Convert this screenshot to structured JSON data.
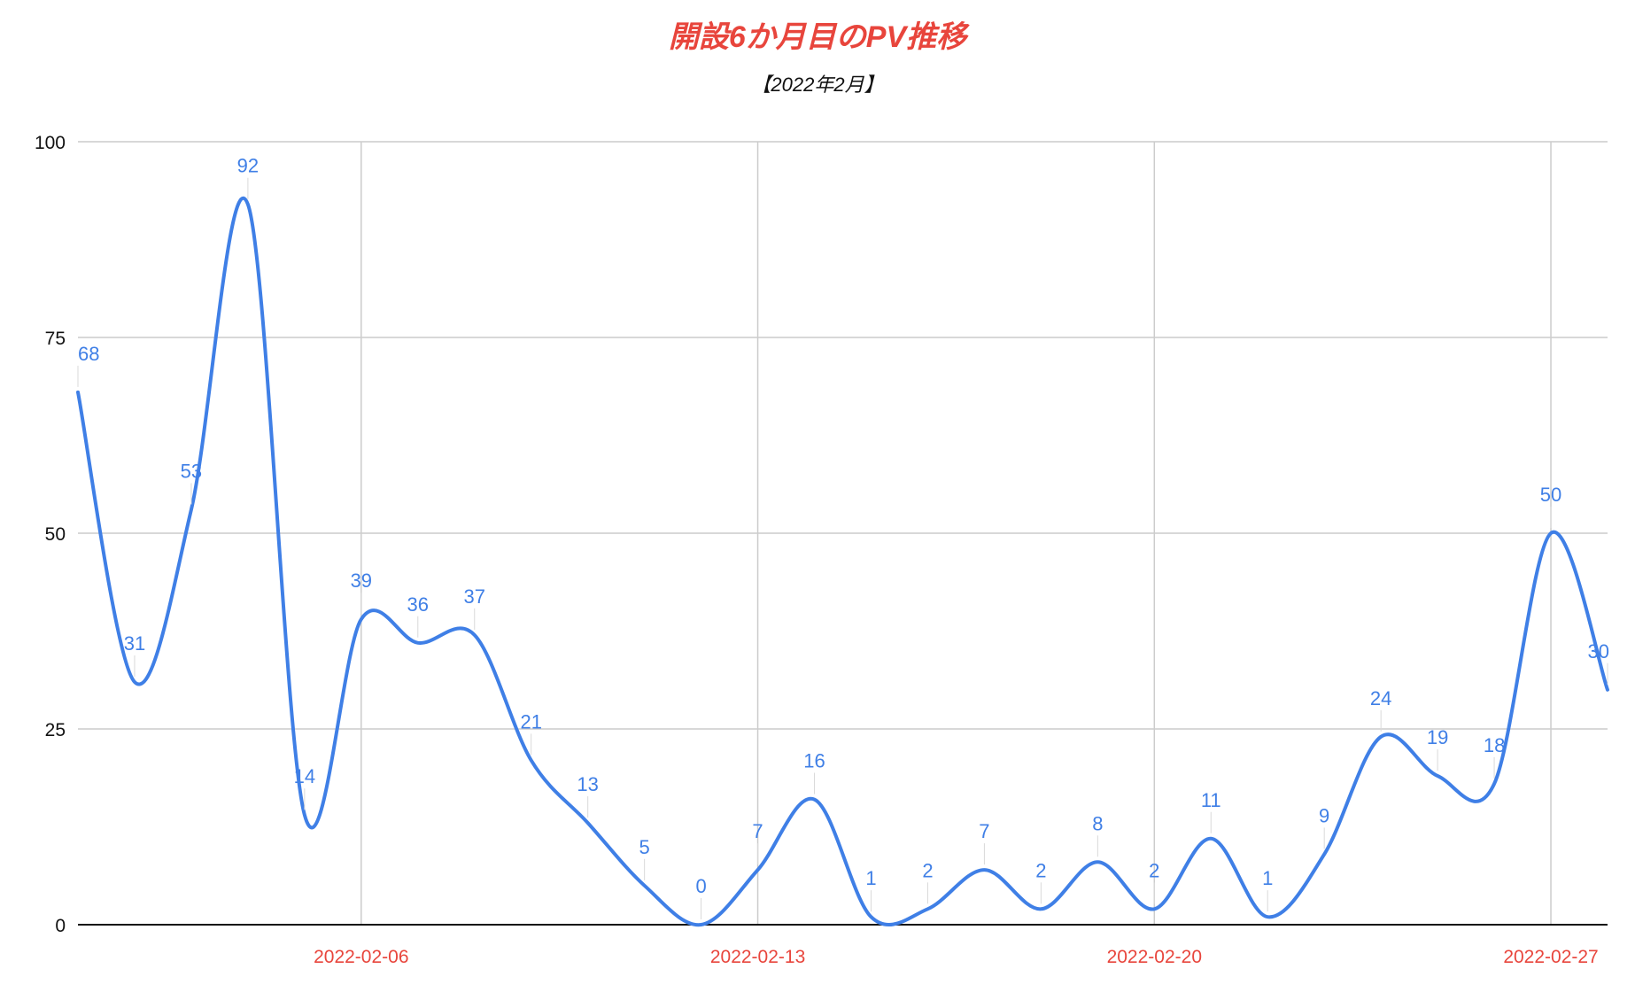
{
  "chart_data": {
    "type": "line",
    "title": "開設6か月目のPV推移",
    "subtitle": "【2022年2月】",
    "xlabel": "",
    "ylabel": "",
    "ylim": [
      0,
      100
    ],
    "yticks": [
      0,
      25,
      50,
      75,
      100
    ],
    "xticks": [
      "2022-02-06",
      "2022-02-13",
      "2022-02-20",
      "2022-02-27"
    ],
    "x": [
      "2022-02-01",
      "2022-02-02",
      "2022-02-03",
      "2022-02-04",
      "2022-02-05",
      "2022-02-06",
      "2022-02-07",
      "2022-02-08",
      "2022-02-09",
      "2022-02-10",
      "2022-02-11",
      "2022-02-12",
      "2022-02-13",
      "2022-02-14",
      "2022-02-15",
      "2022-02-16",
      "2022-02-17",
      "2022-02-18",
      "2022-02-19",
      "2022-02-20",
      "2022-02-21",
      "2022-02-22",
      "2022-02-23",
      "2022-02-24",
      "2022-02-25",
      "2022-02-26",
      "2022-02-27",
      "2022-02-28"
    ],
    "series": [
      {
        "values": [
          68,
          31,
          53,
          92,
          14,
          39,
          36,
          37,
          21,
          13,
          5,
          0,
          7,
          16,
          1,
          2,
          7,
          2,
          8,
          2,
          11,
          1,
          9,
          24,
          19,
          18,
          50,
          30
        ]
      }
    ],
    "grid": true,
    "legend": "none",
    "colors": {
      "line": "#3f7fe6",
      "data_label": "#3f7fe6",
      "x_tick": "#e8453c",
      "y_tick": "#111111",
      "grid": "#cccccc",
      "axis": "#111111",
      "title": "#e8453c"
    }
  }
}
